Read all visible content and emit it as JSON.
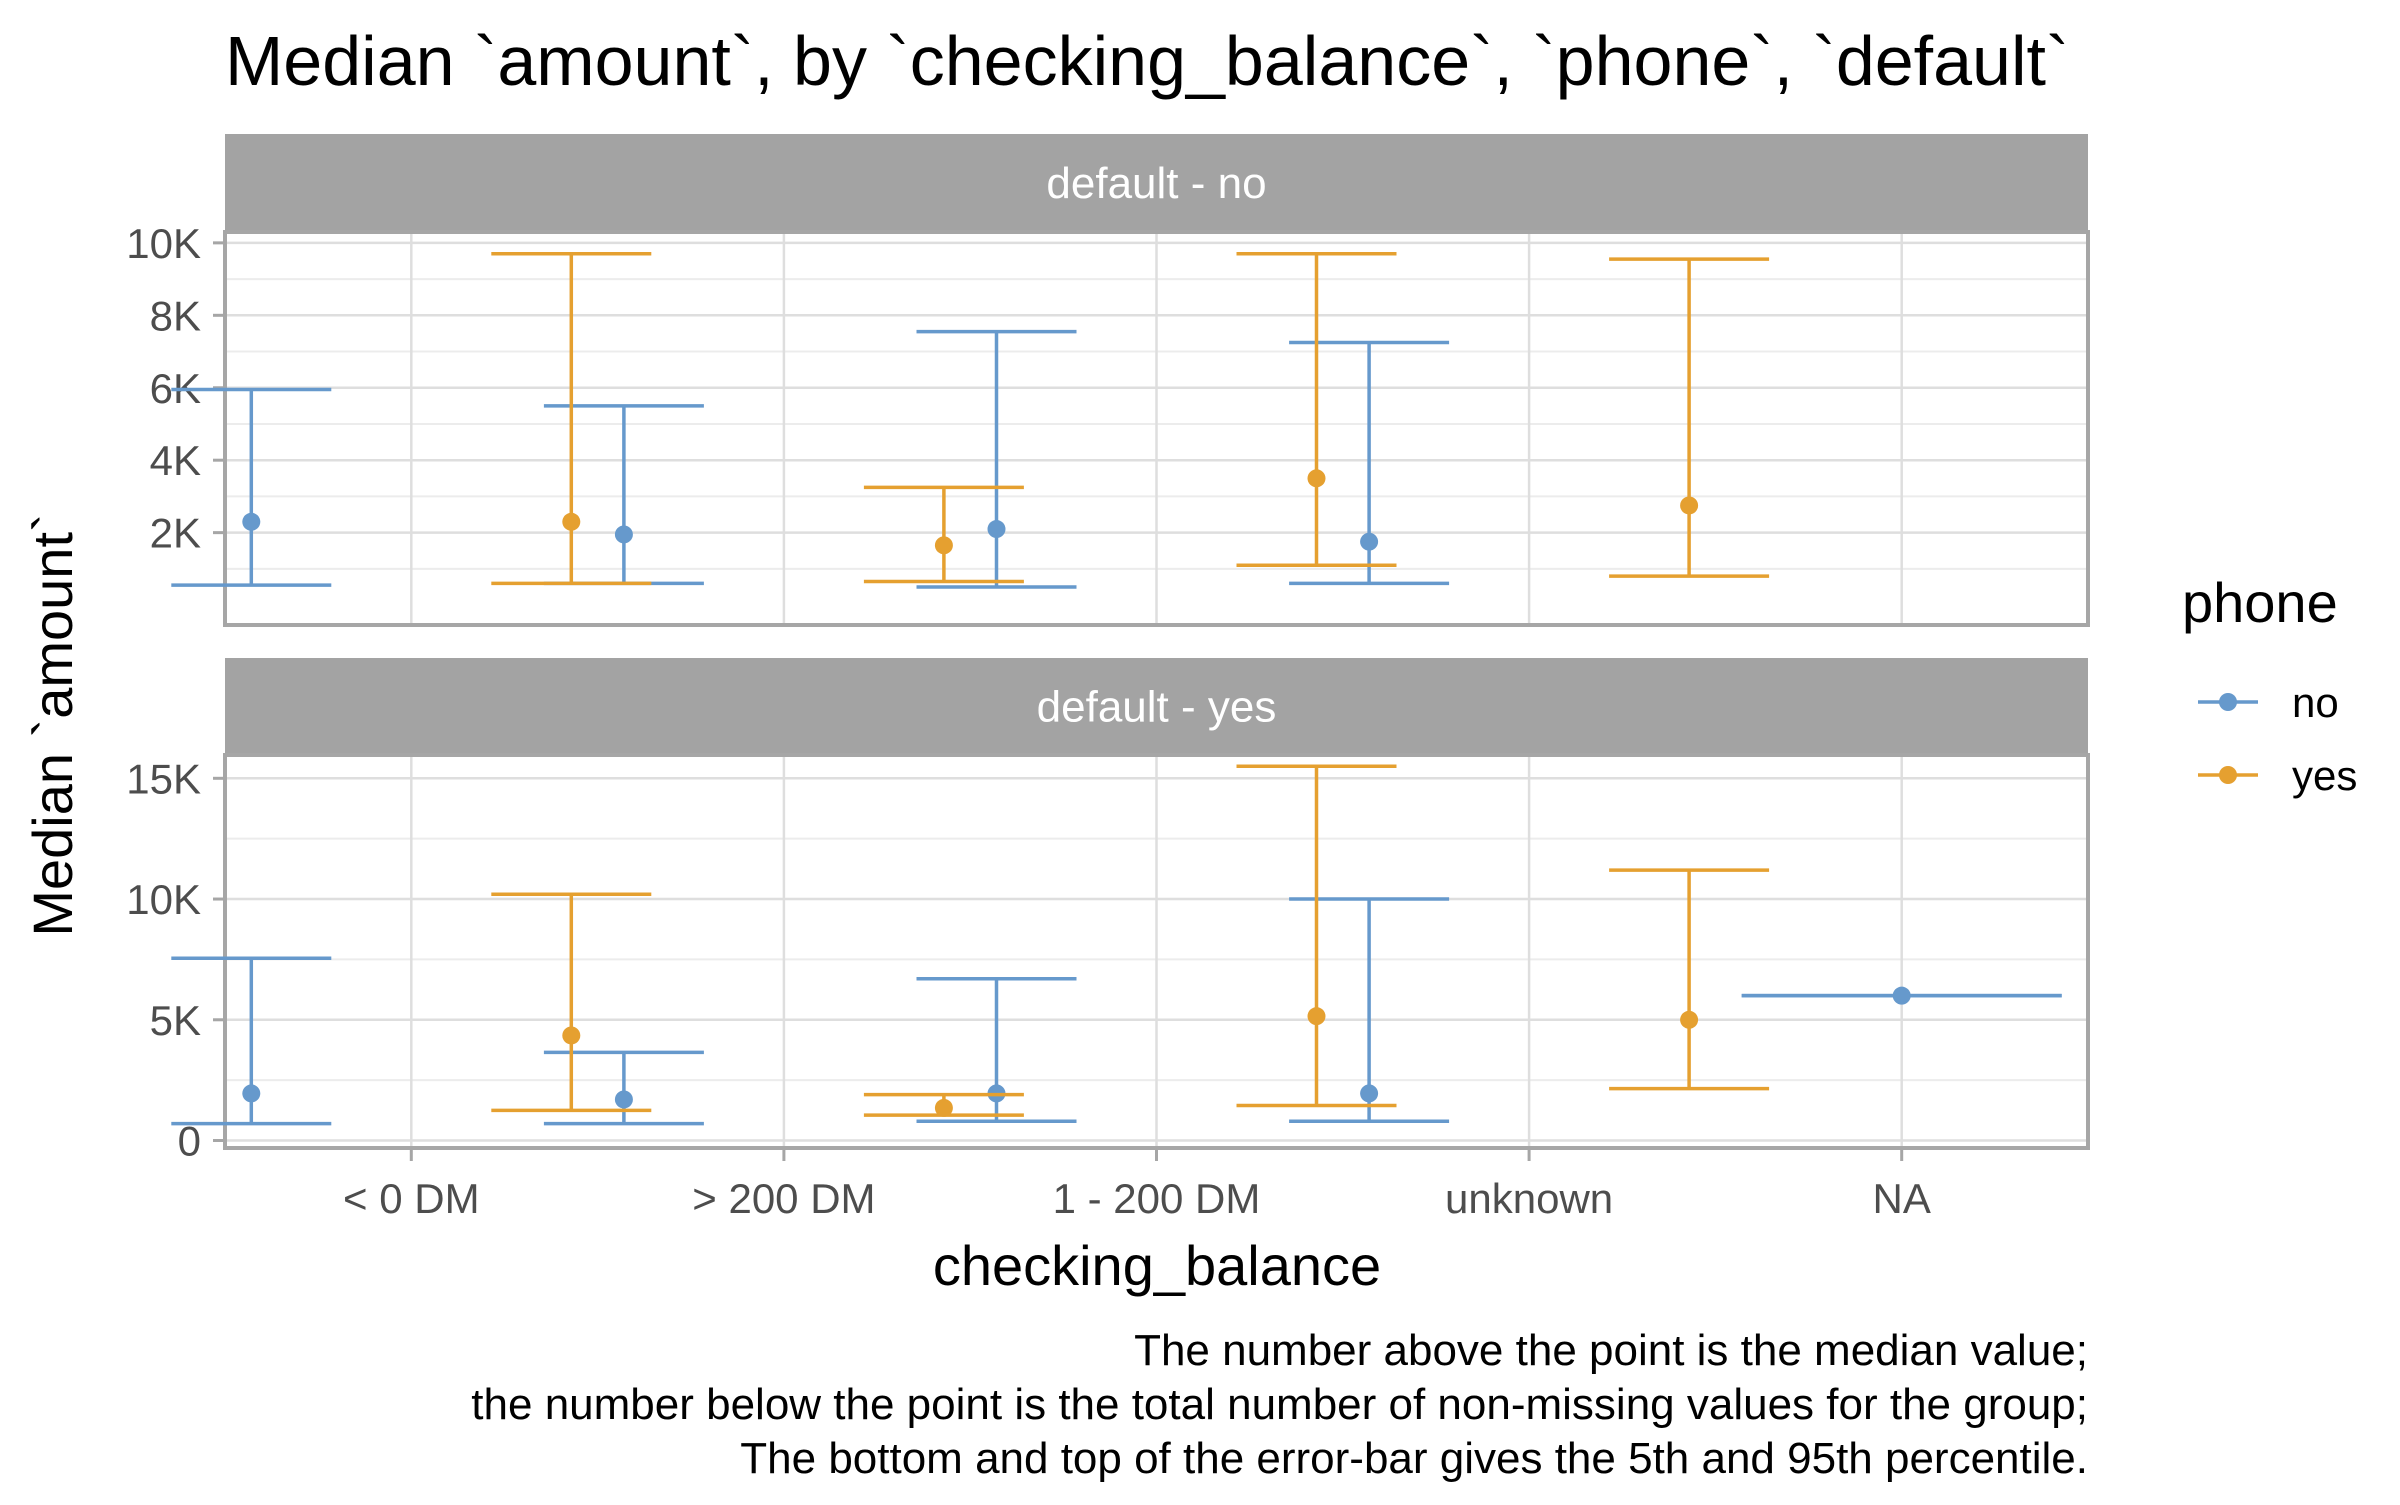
{
  "chart_data": {
    "type": "errorbar",
    "title": "Median `amount`, by `checking_balance`, `phone`, `default`",
    "xlabel": "checking_balance",
    "ylabel": "Median `amount`",
    "categories": [
      "< 0 DM",
      "> 200 DM",
      "1 - 200 DM",
      "unknown",
      "NA"
    ],
    "legend": {
      "title": "phone",
      "placement": "right",
      "entries": [
        {
          "name": "no",
          "color": "#6699CC"
        },
        {
          "name": "yes",
          "color": "#E5A030"
        }
      ]
    },
    "grid": true,
    "caption": [
      "The number above the point is the median value;",
      "the number below the point is the total number of non-missing values for the group;",
      "The bottom and top of the error-bar gives the 5th and 95th percentile."
    ],
    "panels": [
      {
        "strip": "default - no",
        "ylim": [
          0,
          10000
        ],
        "yticks": [
          2000,
          4000,
          6000,
          8000,
          10000
        ],
        "ytick_labels": [
          "2K",
          "4K",
          "6K",
          "8K",
          "10K"
        ],
        "series": [
          {
            "name": "no",
            "points": [
              {
                "category": "< 0 DM",
                "median": 2300,
                "p5": 550,
                "p95": 5950
              },
              {
                "category": "> 200 DM",
                "median": 1950,
                "p5": 600,
                "p95": 5500
              },
              {
                "category": "1 - 200 DM",
                "median": 2100,
                "p5": 500,
                "p95": 7550
              },
              {
                "category": "unknown",
                "median": 1750,
                "p5": 600,
                "p95": 7250
              }
            ]
          },
          {
            "name": "yes",
            "points": [
              {
                "category": "< 0 DM",
                "median": 2300,
                "p5": 600,
                "p95": 9700
              },
              {
                "category": "> 200 DM",
                "median": 1650,
                "p5": 650,
                "p95": 3250
              },
              {
                "category": "1 - 200 DM",
                "median": 3500,
                "p5": 1100,
                "p95": 9700
              },
              {
                "category": "unknown",
                "median": 2750,
                "p5": 800,
                "p95": 9550
              }
            ]
          }
        ]
      },
      {
        "strip": "default - yes",
        "ylim": [
          0,
          15500
        ],
        "yticks": [
          0,
          5000,
          10000,
          15000
        ],
        "ytick_labels": [
          "0",
          "5K",
          "10K",
          "15K"
        ],
        "series": [
          {
            "name": "no",
            "points": [
              {
                "category": "< 0 DM",
                "median": 1950,
                "p5": 700,
                "p95": 7550
              },
              {
                "category": "> 200 DM",
                "median": 1700,
                "p5": 700,
                "p95": 3650
              },
              {
                "category": "1 - 200 DM",
                "median": 1950,
                "p5": 800,
                "p95": 6700
              },
              {
                "category": "unknown",
                "median": 1950,
                "p5": 800,
                "p95": 10000
              },
              {
                "category": "NA",
                "median": 6000,
                "p5": 6000,
                "p95": 6000
              }
            ]
          },
          {
            "name": "yes",
            "points": [
              {
                "category": "< 0 DM",
                "median": 4350,
                "p5": 1250,
                "p95": 10200
              },
              {
                "category": "> 200 DM",
                "median": 1350,
                "p5": 1050,
                "p95": 1900
              },
              {
                "category": "1 - 200 DM",
                "median": 5150,
                "p5": 1450,
                "p95": 15500
              },
              {
                "category": "unknown",
                "median": 5000,
                "p5": 2150,
                "p95": 11200
              }
            ]
          }
        ]
      }
    ]
  }
}
